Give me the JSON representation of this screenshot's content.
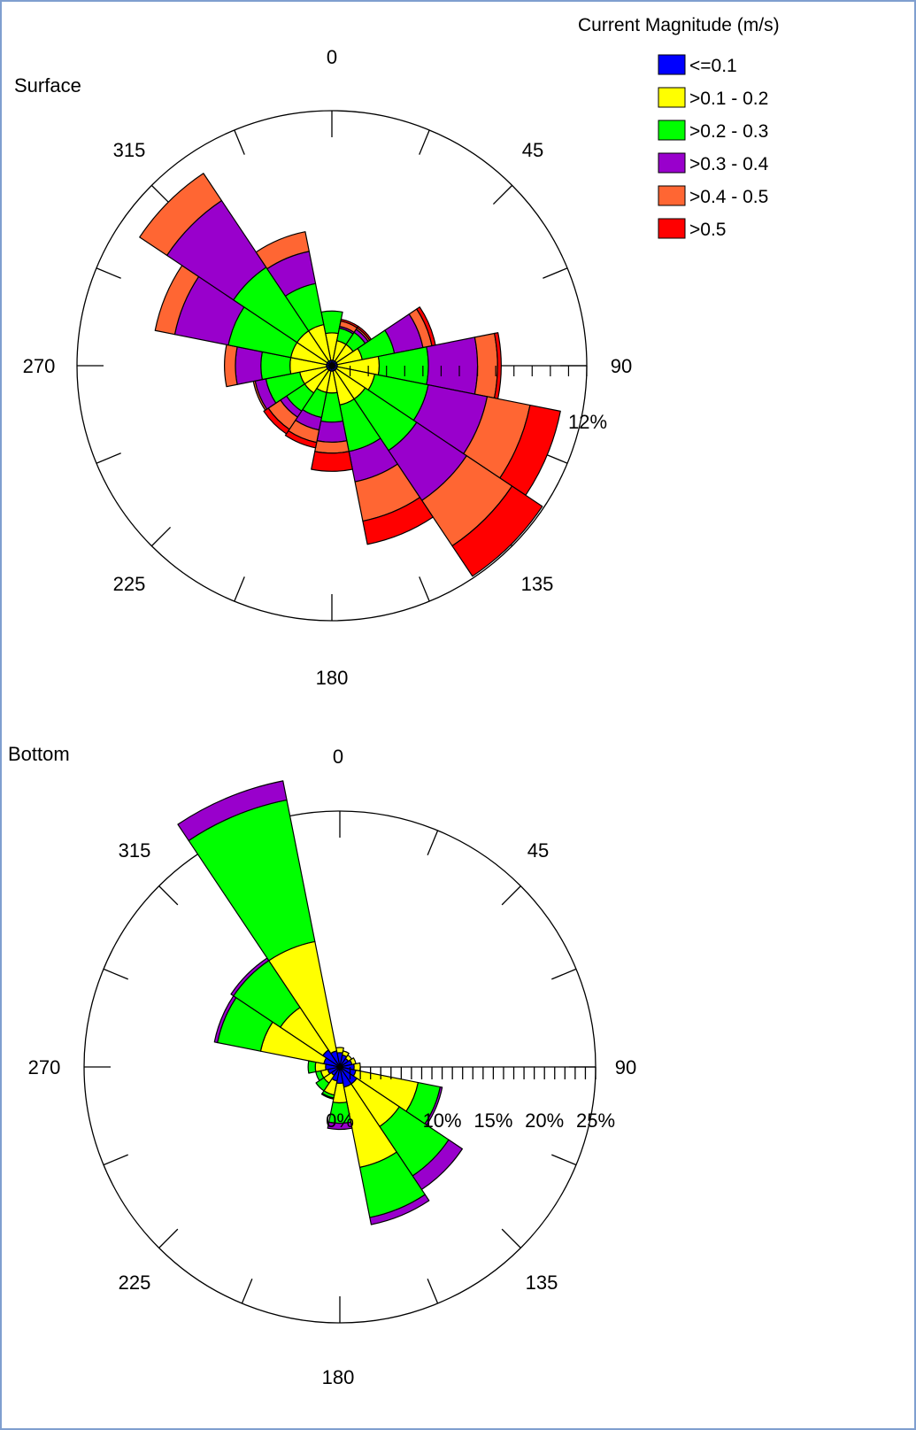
{
  "legend": {
    "title": "Current Magnitude (m/s)",
    "items": [
      {
        "label": "<=0.1",
        "color": "#0000ff"
      },
      {
        "label": ">0.1 - 0.2",
        "color": "#ffff00"
      },
      {
        "label": ">0.2 - 0.3",
        "color": "#00ff00"
      },
      {
        "label": ">0.3 - 0.4",
        "color": "#9900cc"
      },
      {
        "label": ">0.4 - 0.5",
        "color": "#ff6633"
      },
      {
        "label": ">0.5",
        "color": "#ff0000"
      }
    ]
  },
  "chart_data": [
    {
      "type": "wind-rose",
      "title": "Surface",
      "direction_labels": [
        "0",
        "45",
        "90",
        "135",
        "180",
        "225",
        "270",
        "315"
      ],
      "radial_label": "12%",
      "radial_max": 14,
      "sector_width_deg": 22.5,
      "sectors": [
        {
          "direction": 0,
          "cumulative": [
            0.3,
            1.8,
            3.0,
            3.0,
            3.0,
            3.0
          ]
        },
        {
          "direction": 22.5,
          "cumulative": [
            0.3,
            1.4,
            2.1,
            2.2,
            2.5,
            2.6
          ]
        },
        {
          "direction": 45,
          "cumulative": [
            0.3,
            1.4,
            2.2,
            2.4,
            2.5,
            2.6
          ]
        },
        {
          "direction": 67.5,
          "cumulative": [
            0.3,
            1.7,
            3.5,
            5.1,
            5.6,
            5.8
          ]
        },
        {
          "direction": 90,
          "cumulative": [
            0.3,
            2.6,
            5.3,
            8.0,
            9.1,
            9.3
          ]
        },
        {
          "direction": 112.5,
          "cumulative": [
            0.3,
            2.4,
            5.4,
            8.7,
            11.1,
            12.8
          ]
        },
        {
          "direction": 135,
          "cumulative": [
            0.3,
            2.2,
            5.6,
            8.9,
            11.9,
            13.9
          ]
        },
        {
          "direction": 157.5,
          "cumulative": [
            0.3,
            2.2,
            4.8,
            6.5,
            8.7,
            10.0
          ]
        },
        {
          "direction": 180,
          "cumulative": [
            0.3,
            1.5,
            3.1,
            4.2,
            4.8,
            5.8
          ]
        },
        {
          "direction": 202.5,
          "cumulative": [
            0.3,
            1.5,
            2.9,
            3.6,
            4.3,
            4.6
          ]
        },
        {
          "direction": 225,
          "cumulative": [
            0.3,
            1.8,
            3.0,
            3.4,
            4.2,
            4.5
          ]
        },
        {
          "direction": 247.5,
          "cumulative": [
            0.3,
            1.8,
            3.7,
            4.3,
            4.4,
            4.4
          ]
        },
        {
          "direction": 270,
          "cumulative": [
            0.3,
            2.3,
            3.9,
            5.3,
            5.9,
            5.9
          ]
        },
        {
          "direction": 292.5,
          "cumulative": [
            0.3,
            2.3,
            5.8,
            8.8,
            9.9,
            9.9
          ]
        },
        {
          "direction": 315,
          "cumulative": [
            0.3,
            2.3,
            6.5,
            10.9,
            12.7,
            12.7
          ]
        },
        {
          "direction": 337.5,
          "cumulative": [
            0.3,
            2.3,
            4.6,
            6.4,
            7.5,
            7.5
          ]
        }
      ]
    },
    {
      "type": "wind-rose",
      "title": "Bottom",
      "direction_labels": [
        "0",
        "45",
        "90",
        "135",
        "180",
        "225",
        "270",
        "315"
      ],
      "radial_tick_labels": [
        "0%",
        "10%",
        "15%",
        "20%",
        "25%"
      ],
      "radial_max": 25,
      "sector_width_deg": 22.5,
      "sectors": [
        {
          "direction": 0,
          "cumulative": [
            1.4,
            1.9,
            1.9,
            1.9,
            1.9,
            1.9
          ]
        },
        {
          "direction": 22.5,
          "cumulative": [
            1.2,
            1.6,
            1.6,
            1.6,
            1.6,
            1.6
          ]
        },
        {
          "direction": 45,
          "cumulative": [
            1.0,
            1.4,
            1.4,
            1.4,
            1.4,
            1.4
          ]
        },
        {
          "direction": 67.5,
          "cumulative": [
            1.2,
            1.6,
            1.6,
            1.6,
            1.6,
            1.6
          ]
        },
        {
          "direction": 90,
          "cumulative": [
            1.4,
            2.0,
            2.0,
            2.0,
            2.0,
            2.0
          ]
        },
        {
          "direction": 112.5,
          "cumulative": [
            1.6,
            7.8,
            10.0,
            10.2,
            10.2,
            10.2
          ]
        },
        {
          "direction": 135,
          "cumulative": [
            2.0,
            7.0,
            12.8,
            14.4,
            14.4,
            14.4
          ]
        },
        {
          "direction": 157.5,
          "cumulative": [
            2.0,
            10.0,
            15.0,
            15.7,
            15.7,
            15.7
          ]
        },
        {
          "direction": 180,
          "cumulative": [
            1.6,
            3.5,
            5.5,
            6.1,
            6.1,
            6.1
          ]
        },
        {
          "direction": 202.5,
          "cumulative": [
            1.4,
            2.8,
            3.1,
            3.2,
            3.2,
            3.2
          ]
        },
        {
          "direction": 225,
          "cumulative": [
            1.0,
            1.9,
            2.8,
            2.8,
            2.8,
            2.8
          ]
        },
        {
          "direction": 247.5,
          "cumulative": [
            1.2,
            1.9,
            2.4,
            2.4,
            2.4,
            2.4
          ]
        },
        {
          "direction": 270,
          "cumulative": [
            1.4,
            2.4,
            3.1,
            3.1,
            3.1,
            3.1
          ]
        },
        {
          "direction": 292.5,
          "cumulative": [
            1.6,
            7.9,
            12.2,
            12.5,
            12.5,
            12.5
          ]
        },
        {
          "direction": 315,
          "cumulative": [
            2.0,
            7.0,
            12.5,
            12.8,
            12.8,
            12.8
          ]
        },
        {
          "direction": 337.5,
          "cumulative": [
            1.6,
            12.5,
            26.6,
            28.5,
            28.5,
            28.5
          ]
        }
      ]
    }
  ]
}
